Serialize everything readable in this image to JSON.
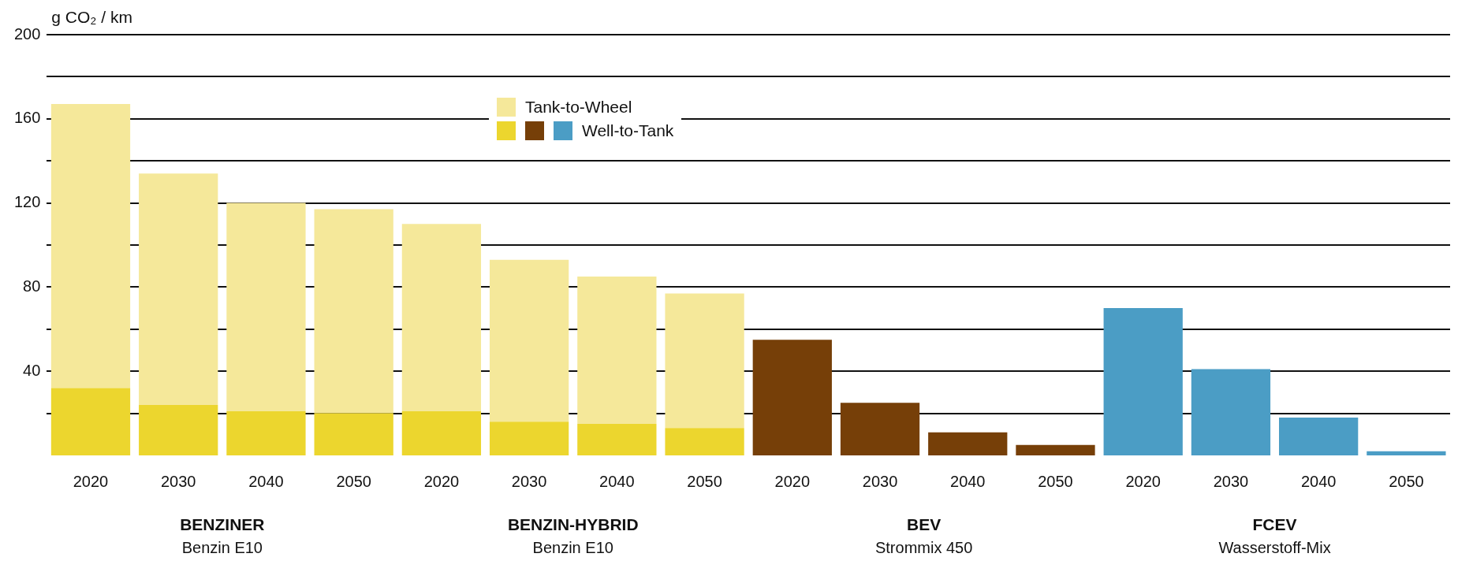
{
  "chart_data": {
    "type": "bar",
    "stacked": true,
    "ylabel": "g CO₂ / km",
    "categories": [
      "2020",
      "2030",
      "2040",
      "2050",
      "2020",
      "2030",
      "2040",
      "2050",
      "2020",
      "2030",
      "2040",
      "2050",
      "2020",
      "2030",
      "2040",
      "2050"
    ],
    "series": [
      {
        "name": "Well-to-Tank",
        "colors": [
          "#ecd62e",
          "#ecd62e",
          "#ecd62e",
          "#ecd62e",
          "#ecd62e",
          "#ecd62e",
          "#ecd62e",
          "#ecd62e",
          "#763f08",
          "#763f08",
          "#763f08",
          "#763f08",
          "#4b9dc5",
          "#4b9dc5",
          "#4b9dc5",
          "#4b9dc5"
        ],
        "values": [
          32,
          24,
          21,
          20,
          21,
          16,
          15,
          13,
          55,
          25,
          11,
          5,
          70,
          41,
          18,
          2
        ]
      },
      {
        "name": "Tank-to-Wheel",
        "color": "#f5e89a",
        "values": [
          135,
          110,
          99,
          97,
          89,
          77,
          70,
          64,
          null,
          null,
          null,
          null,
          null,
          null,
          null,
          null
        ]
      }
    ],
    "ylim": [
      0,
      200
    ],
    "yticks": [
      {
        "value": 20,
        "label": null
      },
      40,
      {
        "value": 60,
        "label": null
      },
      80,
      {
        "value": 100,
        "label": null
      },
      120,
      {
        "value": 140,
        "label": null
      },
      160,
      {
        "value": 180,
        "label": null
      },
      200
    ],
    "grid": "y",
    "legend": "top",
    "annotations": [
      "BENZINER",
      "Benzin E10",
      "BENZIN-HYBRID",
      "Benzin E10",
      "BEV",
      "Strommix 450",
      "FCEV",
      "Wasserstoff-Mix"
    ]
  }
}
